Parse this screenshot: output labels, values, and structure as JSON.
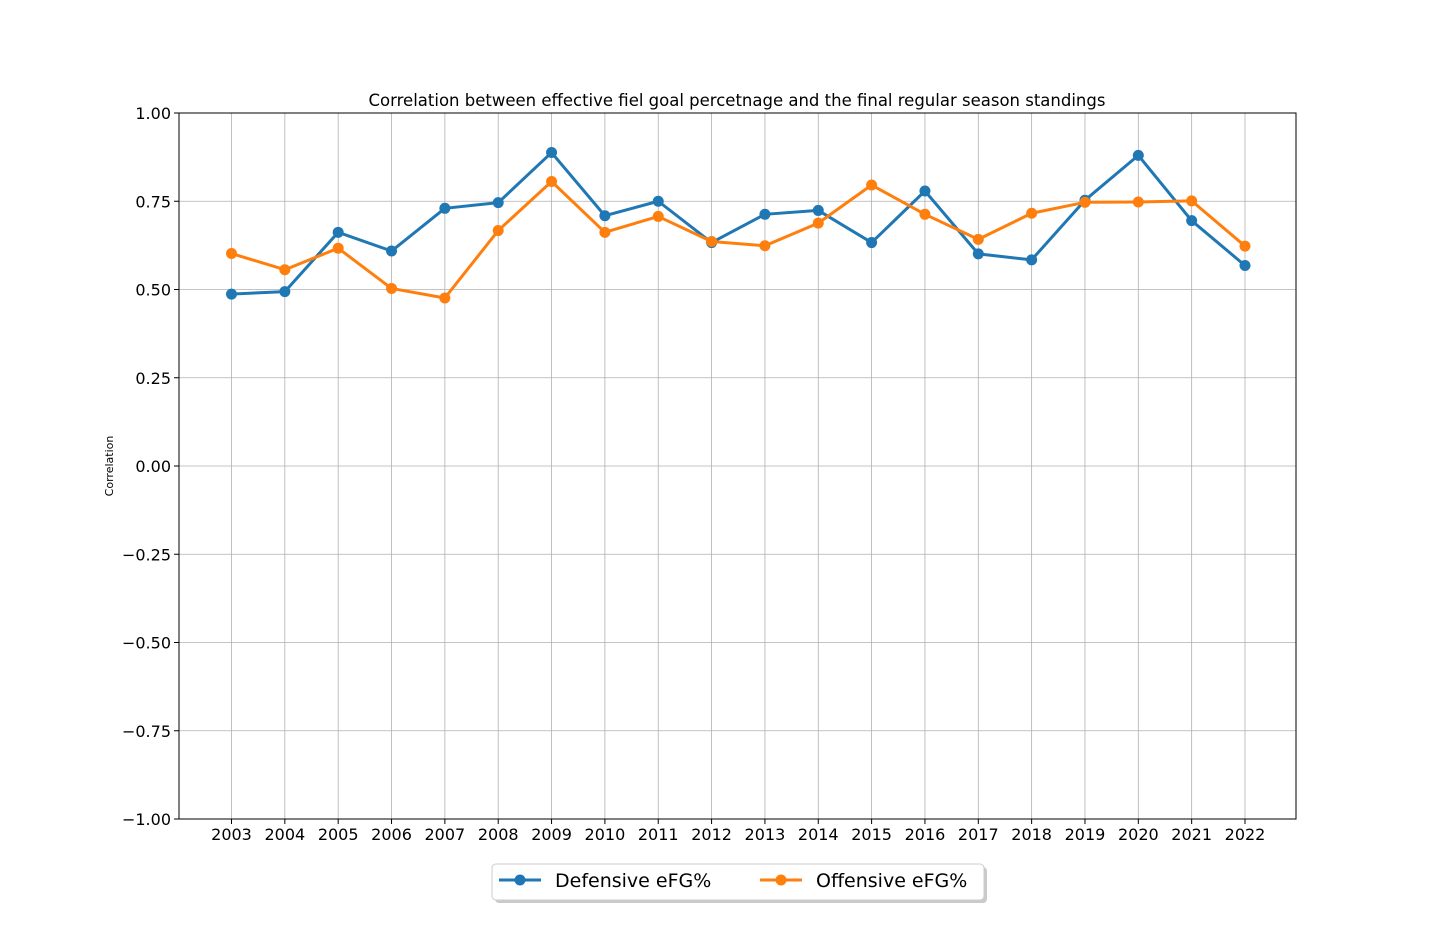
{
  "chart_data": {
    "type": "line",
    "title": "Correlation between effective fiel goal percetnage and the final regular season standings",
    "xlabel": "",
    "ylabel": "Correlation",
    "categories": [
      "2003",
      "2004",
      "2005",
      "2006",
      "2007",
      "2008",
      "2009",
      "2010",
      "2011",
      "2012",
      "2013",
      "2014",
      "2015",
      "2016",
      "2017",
      "2018",
      "2019",
      "2020",
      "2021",
      "2022"
    ],
    "ylim": [
      -1.0,
      1.0
    ],
    "yticks": [
      -1.0,
      -0.75,
      -0.5,
      -0.25,
      0.0,
      0.25,
      0.5,
      0.75,
      1.0
    ],
    "ytick_labels": [
      "−1.00",
      "−0.75",
      "−0.50",
      "−0.25",
      "0.00",
      "0.25",
      "0.50",
      "0.75",
      "1.00"
    ],
    "grid": true,
    "legend_position": "bottom-center",
    "series": [
      {
        "name": "Defensive eFG%",
        "color": "#1f77b4",
        "marker": "circle",
        "values": [
          0.487,
          0.494,
          0.662,
          0.609,
          0.73,
          0.746,
          0.888,
          0.709,
          0.75,
          0.633,
          0.713,
          0.724,
          0.633,
          0.779,
          0.601,
          0.584,
          0.753,
          0.88,
          0.695,
          0.568
        ]
      },
      {
        "name": "Offensive eFG%",
        "color": "#ff7f0e",
        "marker": "circle",
        "values": [
          0.602,
          0.556,
          0.617,
          0.503,
          0.476,
          0.667,
          0.806,
          0.662,
          0.707,
          0.636,
          0.624,
          0.688,
          0.796,
          0.713,
          0.642,
          0.716,
          0.747,
          0.748,
          0.751,
          0.623
        ]
      }
    ]
  }
}
